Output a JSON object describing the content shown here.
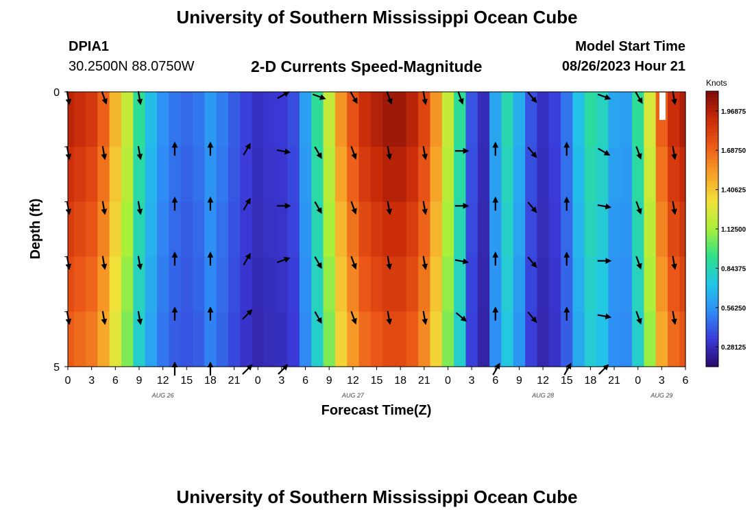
{
  "page": {
    "title": "University of Southern Mississippi Ocean Cube",
    "footer_title": "University of Southern Mississippi Ocean Cube"
  },
  "station": {
    "id": "DPIA1",
    "coords": "30.2500N  88.0750W"
  },
  "model": {
    "label": "Model Start Time",
    "time": "08/26/2023 Hour 21"
  },
  "chart_data": {
    "type": "heatmap",
    "title": "2-D Currents Speed-Magnitude",
    "xlabel": "Forecast Time(Z)",
    "ylabel": "Depth (ft)",
    "ylim": [
      0,
      5
    ],
    "y_ticks": [
      "0",
      "5"
    ],
    "x_ticks": [
      "0",
      "3",
      "6",
      "9",
      "12",
      "15",
      "18",
      "21",
      "0",
      "3",
      "6",
      "9",
      "12",
      "15",
      "18",
      "21",
      "0",
      "3",
      "6",
      "9",
      "12",
      "15",
      "18",
      "21",
      "0",
      "3",
      "6"
    ],
    "date_labels": [
      {
        "label": "AUG 26",
        "tick_index": 4
      },
      {
        "label": "AUG 27",
        "tick_index": 12
      },
      {
        "label": "AUG 28",
        "tick_index": 20
      },
      {
        "label": "AUG 29",
        "tick_index": 25
      }
    ],
    "colorbar": {
      "unit": "Knots",
      "range": [
        0.14,
        2.11
      ],
      "ticks": [
        "1.96875",
        "1.68750",
        "1.40625",
        "1.12500",
        "0.84375",
        "0.56250",
        "0.28125"
      ],
      "tick_values": [
        1.96875,
        1.6875,
        1.40625,
        1.125,
        0.84375,
        0.5625,
        0.28125
      ],
      "colors": [
        "#2a0a6a",
        "#3a3ad8",
        "#2f8cf5",
        "#22c6e8",
        "#2ee08a",
        "#a8f03a",
        "#f2e23a",
        "#f7a028",
        "#ec5a18",
        "#c82a08",
        "#7c0a0a"
      ]
    },
    "time_hours_from_start": [
      0,
      1.5,
      3,
      4.5,
      6,
      7.5,
      9,
      10.5,
      12,
      13.5,
      15,
      16.5,
      18,
      19.5,
      21,
      22.5,
      24,
      25.5,
      27,
      28.5,
      30,
      31.5,
      33,
      34.5,
      36,
      37.5,
      39,
      40.5,
      42,
      43.5,
      45,
      46.5,
      48,
      49.5,
      51,
      52.5,
      54,
      55.5,
      57,
      58.5,
      60,
      61.5,
      63,
      64.5,
      66,
      67.5,
      69,
      70.5,
      72,
      73.5,
      75,
      76.5,
      78
    ],
    "speed_surface_knots": [
      1.95,
      1.9,
      1.85,
      1.7,
      1.45,
      1.2,
      0.9,
      0.7,
      0.55,
      0.48,
      0.45,
      0.48,
      0.58,
      0.5,
      0.42,
      0.35,
      0.3,
      0.32,
      0.33,
      0.38,
      0.6,
      0.9,
      1.2,
      1.55,
      1.75,
      1.9,
      1.97,
      2.02,
      2.02,
      1.95,
      1.8,
      1.55,
      1.2,
      0.9,
      0.4,
      0.28,
      0.62,
      0.85,
      0.65,
      0.4,
      0.3,
      0.35,
      0.48,
      0.72,
      0.88,
      0.82,
      0.62,
      0.6,
      0.9,
      1.25,
      1.7,
      1.9,
      1.98
    ],
    "depth_rows": 5,
    "arrow_times_hours": [
      0,
      4.5,
      9,
      13.5,
      18,
      22.5,
      27,
      31.5,
      36,
      40.5,
      45,
      49.5,
      54,
      58.5,
      63,
      67.5,
      72,
      76.5
    ],
    "arrow_directions_deg": [
      [
        170,
        160,
        170,
        null,
        null,
        null,
        60,
        110,
        150,
        160,
        170,
        160,
        null,
        140,
        null,
        110,
        150,
        170
      ],
      [
        170,
        170,
        170,
        0,
        0,
        30,
        100,
        150,
        160,
        170,
        170,
        90,
        0,
        140,
        0,
        120,
        160,
        170
      ],
      [
        170,
        170,
        170,
        0,
        0,
        30,
        90,
        150,
        160,
        170,
        170,
        90,
        0,
        140,
        0,
        100,
        160,
        170
      ],
      [
        170,
        170,
        170,
        0,
        0,
        30,
        70,
        150,
        160,
        170,
        170,
        100,
        0,
        140,
        0,
        90,
        160,
        170
      ],
      [
        170,
        170,
        170,
        0,
        0,
        45,
        null,
        150,
        160,
        170,
        170,
        130,
        0,
        140,
        0,
        100,
        160,
        170
      ],
      [
        null,
        null,
        null,
        0,
        0,
        45,
        45,
        null,
        null,
        null,
        null,
        null,
        30,
        null,
        30,
        45,
        null,
        null
      ]
    ]
  }
}
